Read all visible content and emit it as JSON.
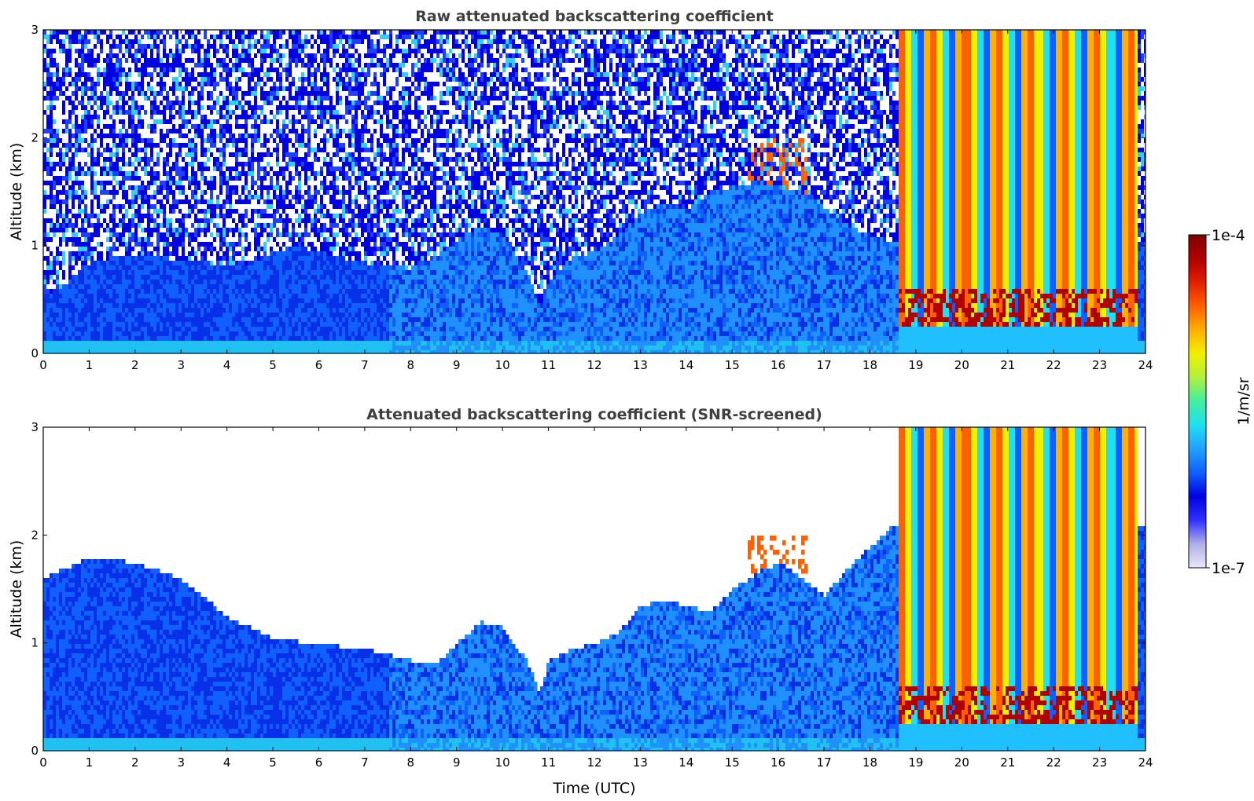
{
  "chart_data": [
    {
      "type": "heatmap",
      "title": "Raw attenuated backscattering coefficient",
      "xlabel": "",
      "ylabel": "Altitude (km)",
      "xlim": [
        0,
        24
      ],
      "ylim": [
        0,
        3
      ],
      "xticks": [
        "0",
        "1",
        "2",
        "3",
        "4",
        "5",
        "6",
        "7",
        "8",
        "9",
        "10",
        "11",
        "12",
        "13",
        "14",
        "15",
        "16",
        "17",
        "18",
        "19",
        "20",
        "21",
        "22",
        "23",
        "24"
      ],
      "yticks": [
        "0",
        "1",
        "2",
        "3"
      ],
      "boundary_layer_top_km": {
        "x": [
          0,
          0.5,
          1,
          1.5,
          2,
          2.5,
          3,
          3.5,
          4,
          4.5,
          5,
          5.5,
          6,
          6.5,
          7,
          7.5,
          8,
          8.5,
          9,
          9.5,
          10,
          10.5,
          10.8,
          11,
          11.5,
          12,
          12.5,
          13,
          13.5,
          14,
          14.5,
          15,
          15.5,
          16,
          16.5,
          17,
          17.5,
          18,
          18.5
        ],
        "y": [
          0.55,
          0.65,
          0.85,
          0.9,
          0.92,
          0.9,
          0.88,
          0.85,
          0.82,
          0.85,
          0.95,
          1.0,
          0.95,
          0.9,
          0.85,
          0.82,
          0.8,
          0.9,
          1.05,
          1.2,
          1.1,
          0.8,
          0.45,
          0.7,
          0.9,
          0.95,
          1.1,
          1.3,
          1.4,
          1.35,
          1.5,
          1.55,
          1.6,
          1.55,
          1.5,
          1.35,
          1.2,
          1.1,
          1.05
        ]
      },
      "cloud_layers": [
        {
          "x_start": 15.3,
          "x_end": 16.6,
          "y_bottom": 1.4,
          "y_top": 2.0
        },
        {
          "x_start": 18.6,
          "x_end": 23.8,
          "y_bottom": 0.2,
          "y_top": 3.0
        }
      ]
    },
    {
      "type": "heatmap",
      "title": "Attenuated backscattering coefficient (SNR-screened)",
      "xlabel": "Time (UTC)",
      "ylabel": "Altitude (km)",
      "xlim": [
        0,
        24
      ],
      "ylim": [
        0,
        3
      ],
      "xticks": [
        "0",
        "1",
        "2",
        "3",
        "4",
        "5",
        "6",
        "7",
        "8",
        "9",
        "10",
        "11",
        "12",
        "13",
        "14",
        "15",
        "16",
        "17",
        "18",
        "19",
        "20",
        "21",
        "22",
        "23",
        "24"
      ],
      "yticks": [
        "0",
        "1",
        "2",
        "3"
      ],
      "snr_mask_top_km": {
        "x": [
          0,
          0.5,
          1,
          2,
          3,
          4,
          4.5,
          5,
          6,
          7,
          7.5,
          8,
          8.5,
          9,
          9.5,
          10,
          10.5,
          10.8,
          11,
          11.5,
          12,
          12.5,
          13,
          13.5,
          14,
          14.5,
          15,
          15.5,
          16,
          16.5,
          17,
          17.5,
          18,
          18.5
        ],
        "y": [
          1.6,
          1.7,
          1.8,
          1.75,
          1.6,
          1.25,
          1.15,
          1.05,
          1.0,
          0.95,
          0.9,
          0.85,
          0.8,
          1.0,
          1.2,
          1.15,
          0.85,
          0.55,
          0.85,
          0.95,
          1.0,
          1.1,
          1.35,
          1.4,
          1.35,
          1.3,
          1.5,
          1.65,
          1.75,
          1.6,
          1.45,
          1.7,
          1.9,
          2.1
        ]
      }
    }
  ],
  "colorbar": {
    "label": "1/m/sr",
    "max_label": "1e-4",
    "min_label": "1e-7",
    "scale": "log",
    "range": [
      1e-07,
      0.0001
    ],
    "colormap": [
      "#e8e8f8",
      "#b0b0e8",
      "#3030ff",
      "#0000e0",
      "#1060ff",
      "#20a0ff",
      "#20e0f0",
      "#40f0a0",
      "#b0f040",
      "#f0f000",
      "#ffb000",
      "#ff6000",
      "#e02000",
      "#b00000",
      "#800000"
    ]
  }
}
